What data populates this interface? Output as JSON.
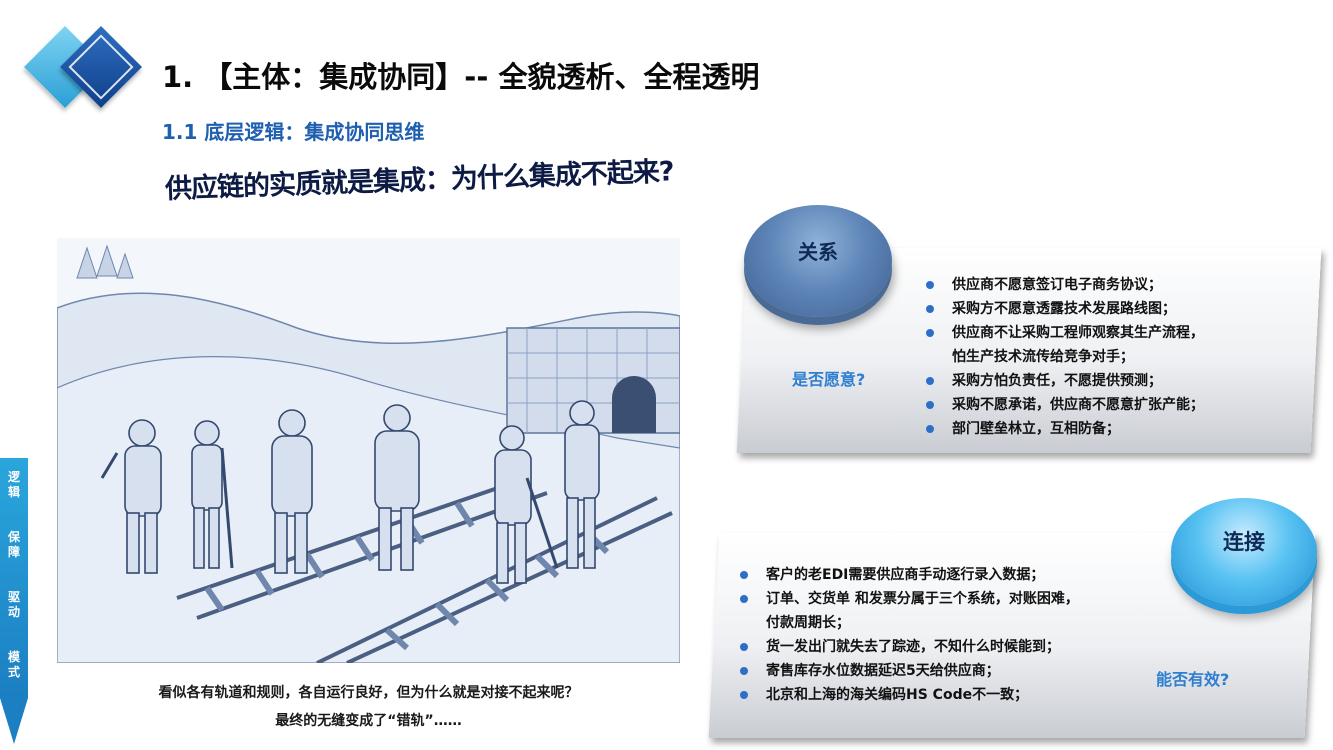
{
  "header": {
    "title": "1. 【主体：集成协同】-- 全貌透析、全程透明",
    "subtitle": "1.1 底层逻辑：集成协同思维",
    "headline": "供应链的实质就是集成：为什么集成不起来?"
  },
  "illustration": {
    "caption_line1": "看似各有轨道和规则，各自运行良好，但为什么就是对接不起来呢？",
    "caption_line2": "最终的无缝变成了“错轨”……"
  },
  "sidebar": {
    "items": [
      {
        "label": "逻辑"
      },
      {
        "label": "保障"
      },
      {
        "label": "驱动"
      },
      {
        "label": "模式"
      }
    ]
  },
  "panel_relation": {
    "bubble_label": "关系",
    "question": "是否愿意?",
    "items": [
      "供应商不愿意签订电子商务协议；",
      "采购方不愿意透露技术发展路线图；",
      "供应商不让采购工程师观察其生产流程，",
      "怕生产技术流传给竞争对手；",
      "采购方怕负责任，不愿提供预测；",
      "采购不愿承诺，供应商不愿意扩张产能；",
      "部门壁垒林立，互相防备；"
    ]
  },
  "panel_connection": {
    "bubble_label": "连接",
    "question": "能否有效?",
    "items": [
      "客户的老EDI需要供应商手动逐行录入数据；",
      "订单、交货单 和发票分属于三个系统，对账困难，",
      "付款周期长；",
      "货一发出门就失去了踪迹，不知什么时候能到；",
      "寄售库存水位数据延迟5天给供应商；",
      "北京和上海的海关编码HS Code不一致；"
    ]
  },
  "colors": {
    "accent_blue": "#1f5fb0",
    "bullet_blue": "#2f6ec7",
    "question_blue": "#2e7fd0",
    "nav_blue": "#1b7fc2"
  }
}
